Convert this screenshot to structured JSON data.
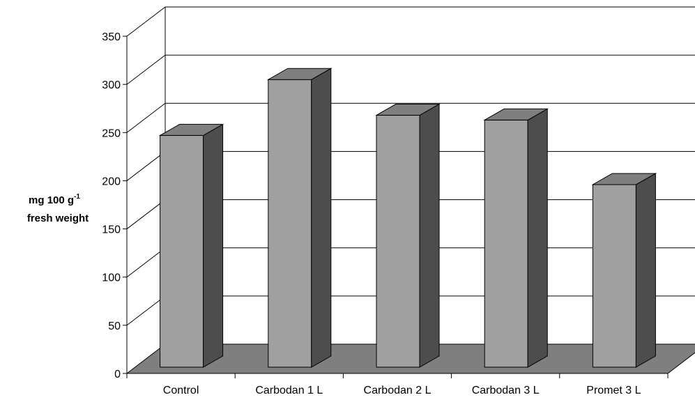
{
  "chart_data": {
    "type": "bar",
    "title": "",
    "xlabel": "",
    "ylabel": {
      "line1_main": "mg 100 g",
      "line1_superscript": "-1",
      "line2": "fresh weight"
    },
    "categories": [
      "Control",
      "Carbodan 1 L",
      "Carbodan 2 L",
      "Carbodan 3 L",
      "Promet 3 L"
    ],
    "values": [
      247,
      305,
      268,
      263,
      196
    ],
    "ylim": [
      0,
      350
    ],
    "yticks": [
      "0",
      "50",
      "100",
      "150",
      "200",
      "250",
      "300",
      "350"
    ],
    "grid": true,
    "legend": "none",
    "style": "3d-column",
    "colors": {
      "bar_front": "#a0a0a0",
      "bar_top": "#7f7f7f",
      "bar_side": "#4d4d4d",
      "floor": "#7f7f7f",
      "gridline": "#000000",
      "background": "#ffffff"
    }
  }
}
